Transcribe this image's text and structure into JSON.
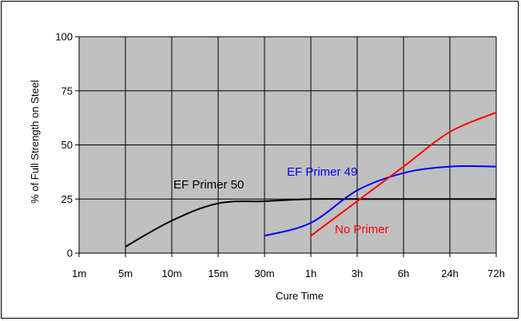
{
  "chart_data": {
    "type": "line",
    "xlabel": "Cure Time",
    "ylabel": "% of Full Strength on Steel",
    "x_categories": [
      "1m",
      "5m",
      "10m",
      "15m",
      "30m",
      "1h",
      "3h",
      "6h",
      "24h",
      "72h"
    ],
    "ylim": [
      0,
      100
    ],
    "yticks": [
      0,
      25,
      50,
      75,
      100
    ],
    "grid": true,
    "plot_background": "#c0c0c0",
    "series": [
      {
        "name": "EF Primer 50",
        "color": "#000000",
        "points": [
          {
            "x": "5m",
            "y": 3
          },
          {
            "x": "10m",
            "y": 15
          },
          {
            "x": "15m",
            "y": 23
          },
          {
            "x": "30m",
            "y": 24
          },
          {
            "x": "1h",
            "y": 25
          },
          {
            "x": "3h",
            "y": 25
          },
          {
            "x": "6h",
            "y": 25
          },
          {
            "x": "24h",
            "y": 25
          },
          {
            "x": "72h",
            "y": 25
          }
        ]
      },
      {
        "name": "EF Primer 49",
        "color": "#0000ff",
        "points": [
          {
            "x": "30m",
            "y": 8
          },
          {
            "x": "1h",
            "y": 14
          },
          {
            "x": "3h",
            "y": 29
          },
          {
            "x": "6h",
            "y": 37
          },
          {
            "x": "24h",
            "y": 40
          },
          {
            "x": "72h",
            "y": 40
          }
        ]
      },
      {
        "name": "No Primer",
        "color": "#ff0000",
        "points": [
          {
            "x": "1h",
            "y": 8
          },
          {
            "x": "3h",
            "y": 24
          },
          {
            "x": "6h",
            "y": 40
          },
          {
            "x": "24h",
            "y": 56
          },
          {
            "x": "72h",
            "y": 65
          }
        ]
      }
    ]
  }
}
